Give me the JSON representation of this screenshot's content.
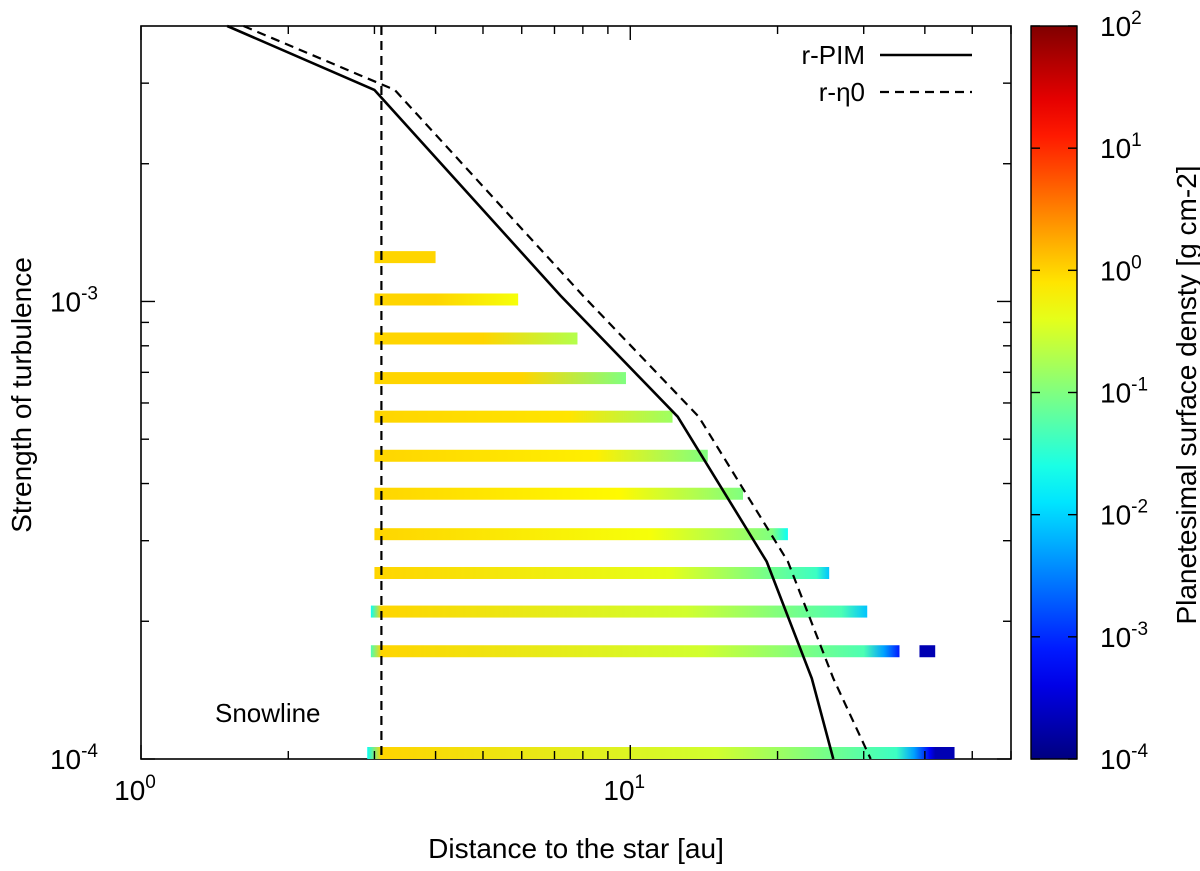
{
  "chart_data": {
    "type": "heatmap",
    "xlabel": "Distance to the star [au]",
    "ylabel": "Strength of turbulence",
    "colorbar_label": "Planetesimal surface densty [g cm-2]",
    "x_scale": "log",
    "y_scale": "log",
    "xlim": [
      1,
      60
    ],
    "ylim": [
      0.0001,
      0.004
    ],
    "colorbar_range": [
      0.0001,
      100
    ],
    "colorbar_colormap": "jet",
    "x_ticks": [
      {
        "base": "10",
        "exp": "0"
      },
      {
        "base": "10",
        "exp": "1"
      }
    ],
    "y_ticks": [
      {
        "base": "10",
        "exp": "-4"
      },
      {
        "base": "10",
        "exp": "-3"
      }
    ],
    "colorbar_ticks": [
      {
        "base": "10",
        "exp": "2"
      },
      {
        "base": "10",
        "exp": "1"
      },
      {
        "base": "10",
        "exp": "0"
      },
      {
        "base": "10",
        "exp": "-1"
      },
      {
        "base": "10",
        "exp": "-2"
      },
      {
        "base": "10",
        "exp": "-3"
      },
      {
        "base": "10",
        "exp": "-4"
      }
    ],
    "legend": [
      {
        "name": "r-PIM",
        "style": "solid"
      },
      {
        "name": "r-η0",
        "style": "dashed"
      }
    ],
    "legend_position": "top-right",
    "snowline": {
      "label": "Snowline",
      "x": 3.1
    },
    "curves": {
      "r_pim": [
        [
          1.5,
          0.004
        ],
        [
          3.0,
          0.0029
        ],
        [
          7.2,
          0.00103
        ],
        [
          12.5,
          0.00056
        ],
        [
          19.0,
          0.00027
        ],
        [
          23.5,
          0.00015
        ],
        [
          26.0,
          0.0001
        ]
      ],
      "r_eta0": [
        [
          1.62,
          0.004
        ],
        [
          3.3,
          0.0029
        ],
        [
          8.0,
          0.00103
        ],
        [
          13.8,
          0.00056
        ],
        [
          21.0,
          0.00027
        ],
        [
          26.0,
          0.00015
        ],
        [
          31.0,
          0.0001
        ]
      ]
    },
    "bands": [
      {
        "alpha": 0.00125,
        "x_start": 3.0,
        "x_end": 4.0,
        "stops": [
          [
            3.0,
            1.0
          ],
          [
            4.0,
            1.0
          ]
        ]
      },
      {
        "alpha": 0.00101,
        "x_start": 3.0,
        "x_end": 5.9,
        "stops": [
          [
            3.0,
            1.0
          ],
          [
            4.0,
            1.0
          ],
          [
            5.9,
            0.5
          ]
        ]
      },
      {
        "alpha": 0.00083,
        "x_start": 3.0,
        "x_end": 7.8,
        "stops": [
          [
            3.0,
            1.0
          ],
          [
            5.0,
            1.0
          ],
          [
            7.8,
            0.2
          ]
        ]
      },
      {
        "alpha": 0.00068,
        "x_start": 3.0,
        "x_end": 9.8,
        "stops": [
          [
            3.0,
            1.0
          ],
          [
            6.0,
            1.0
          ],
          [
            9.8,
            0.1
          ]
        ]
      },
      {
        "alpha": 0.00056,
        "x_start": 3.0,
        "x_end": 12.2,
        "stops": [
          [
            3.0,
            1.0
          ],
          [
            7.5,
            0.8
          ],
          [
            12.2,
            0.15
          ]
        ]
      },
      {
        "alpha": 0.00046,
        "x_start": 3.0,
        "x_end": 14.4,
        "stops": [
          [
            3.0,
            1.0
          ],
          [
            8.5,
            0.7
          ],
          [
            14.4,
            0.1
          ]
        ]
      },
      {
        "alpha": 0.00038,
        "x_start": 3.0,
        "x_end": 17.0,
        "stops": [
          [
            3.0,
            1.0
          ],
          [
            9.5,
            0.6
          ],
          [
            17.0,
            0.1
          ]
        ]
      },
      {
        "alpha": 0.00031,
        "x_start": 3.0,
        "x_end": 21.0,
        "stops": [
          [
            3.0,
            1.0
          ],
          [
            11.0,
            0.5
          ],
          [
            19.5,
            0.1
          ],
          [
            21.0,
            0.02
          ]
        ]
      },
      {
        "alpha": 0.000255,
        "x_start": 3.0,
        "x_end": 25.5,
        "stops": [
          [
            3.0,
            1.0
          ],
          [
            12.0,
            0.4
          ],
          [
            24.0,
            0.04
          ],
          [
            25.5,
            0.008
          ]
        ]
      },
      {
        "alpha": 0.00021,
        "x_start": 2.95,
        "x_end": 30.5,
        "stops": [
          [
            2.95,
            0.02
          ],
          [
            3.1,
            1.0
          ],
          [
            13.0,
            0.3
          ],
          [
            27.0,
            0.05
          ],
          [
            30.5,
            0.008
          ]
        ]
      },
      {
        "alpha": 0.000172,
        "x_start": 2.95,
        "x_end": 35.5,
        "stops": [
          [
            2.95,
            0.05
          ],
          [
            3.1,
            1.0
          ],
          [
            14.0,
            0.3
          ],
          [
            30.0,
            0.05
          ],
          [
            33.0,
            0.005
          ],
          [
            35.5,
            0.0008
          ]
        ]
      },
      {
        "alpha": 0.000172,
        "x_start": 39.0,
        "x_end": 42.0,
        "stops": [
          [
            39.0,
            0.0002
          ],
          [
            42.0,
            0.0002
          ]
        ]
      },
      {
        "alpha": 0.000101,
        "x_start": 2.9,
        "x_end": 46.0,
        "stops": [
          [
            2.9,
            0.02
          ],
          [
            3.1,
            1.0
          ],
          [
            15.0,
            0.3
          ],
          [
            35.0,
            0.04
          ],
          [
            38.0,
            0.005
          ],
          [
            41.0,
            0.0005
          ],
          [
            42.0,
            0.0002
          ],
          [
            46.0,
            0.0002
          ]
        ]
      }
    ]
  }
}
